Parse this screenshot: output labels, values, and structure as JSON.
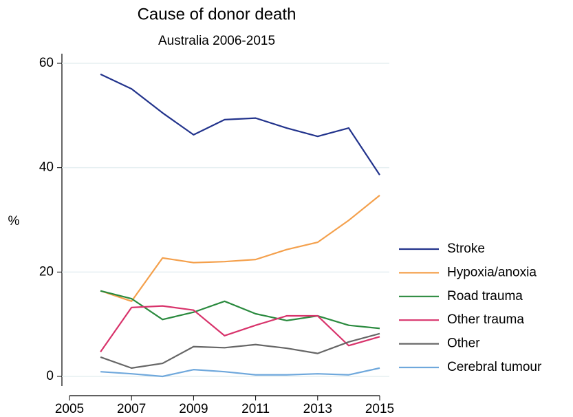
{
  "chart_data": {
    "type": "line",
    "title": "Cause of donor death",
    "subtitle": "Australia 2006-2015",
    "y_label": "%",
    "x": [
      2006,
      2007,
      2008,
      2009,
      2010,
      2011,
      2012,
      2013,
      2014,
      2015
    ],
    "series": [
      {
        "name": "Stroke",
        "color": "#22338c",
        "values": [
          57.9,
          55.1,
          50.5,
          46.3,
          49.2,
          49.5,
          47.6,
          46.0,
          47.6,
          38.6
        ]
      },
      {
        "name": "Hypoxia/anoxia",
        "color": "#f4a04c",
        "values": [
          16.4,
          14.4,
          22.7,
          21.8,
          22.0,
          22.4,
          24.3,
          25.7,
          29.9,
          34.7
        ]
      },
      {
        "name": "Road trauma",
        "color": "#2a8a3e",
        "values": [
          16.4,
          14.9,
          10.9,
          12.3,
          14.4,
          12.0,
          10.7,
          11.6,
          9.8,
          9.2
        ]
      },
      {
        "name": "Other trauma",
        "color": "#d8336b",
        "values": [
          4.7,
          13.2,
          13.5,
          12.7,
          7.8,
          9.8,
          11.6,
          11.6,
          5.9,
          7.6
        ]
      },
      {
        "name": "Other",
        "color": "#666666",
        "values": [
          3.7,
          1.6,
          2.5,
          5.7,
          5.5,
          6.1,
          5.4,
          4.4,
          6.6,
          8.2
        ]
      },
      {
        "name": "Cerebral tumour",
        "color": "#6fa8dc",
        "values": [
          0.9,
          0.5,
          0.0,
          1.3,
          0.9,
          0.3,
          0.3,
          0.5,
          0.3,
          1.6
        ]
      }
    ],
    "xlim": [
      2005,
      2015
    ],
    "xticks": [
      2005,
      2007,
      2009,
      2011,
      2013,
      2015
    ],
    "ylim": [
      0,
      60
    ],
    "yticks": [
      0,
      20,
      40,
      60
    ],
    "grid": true
  }
}
